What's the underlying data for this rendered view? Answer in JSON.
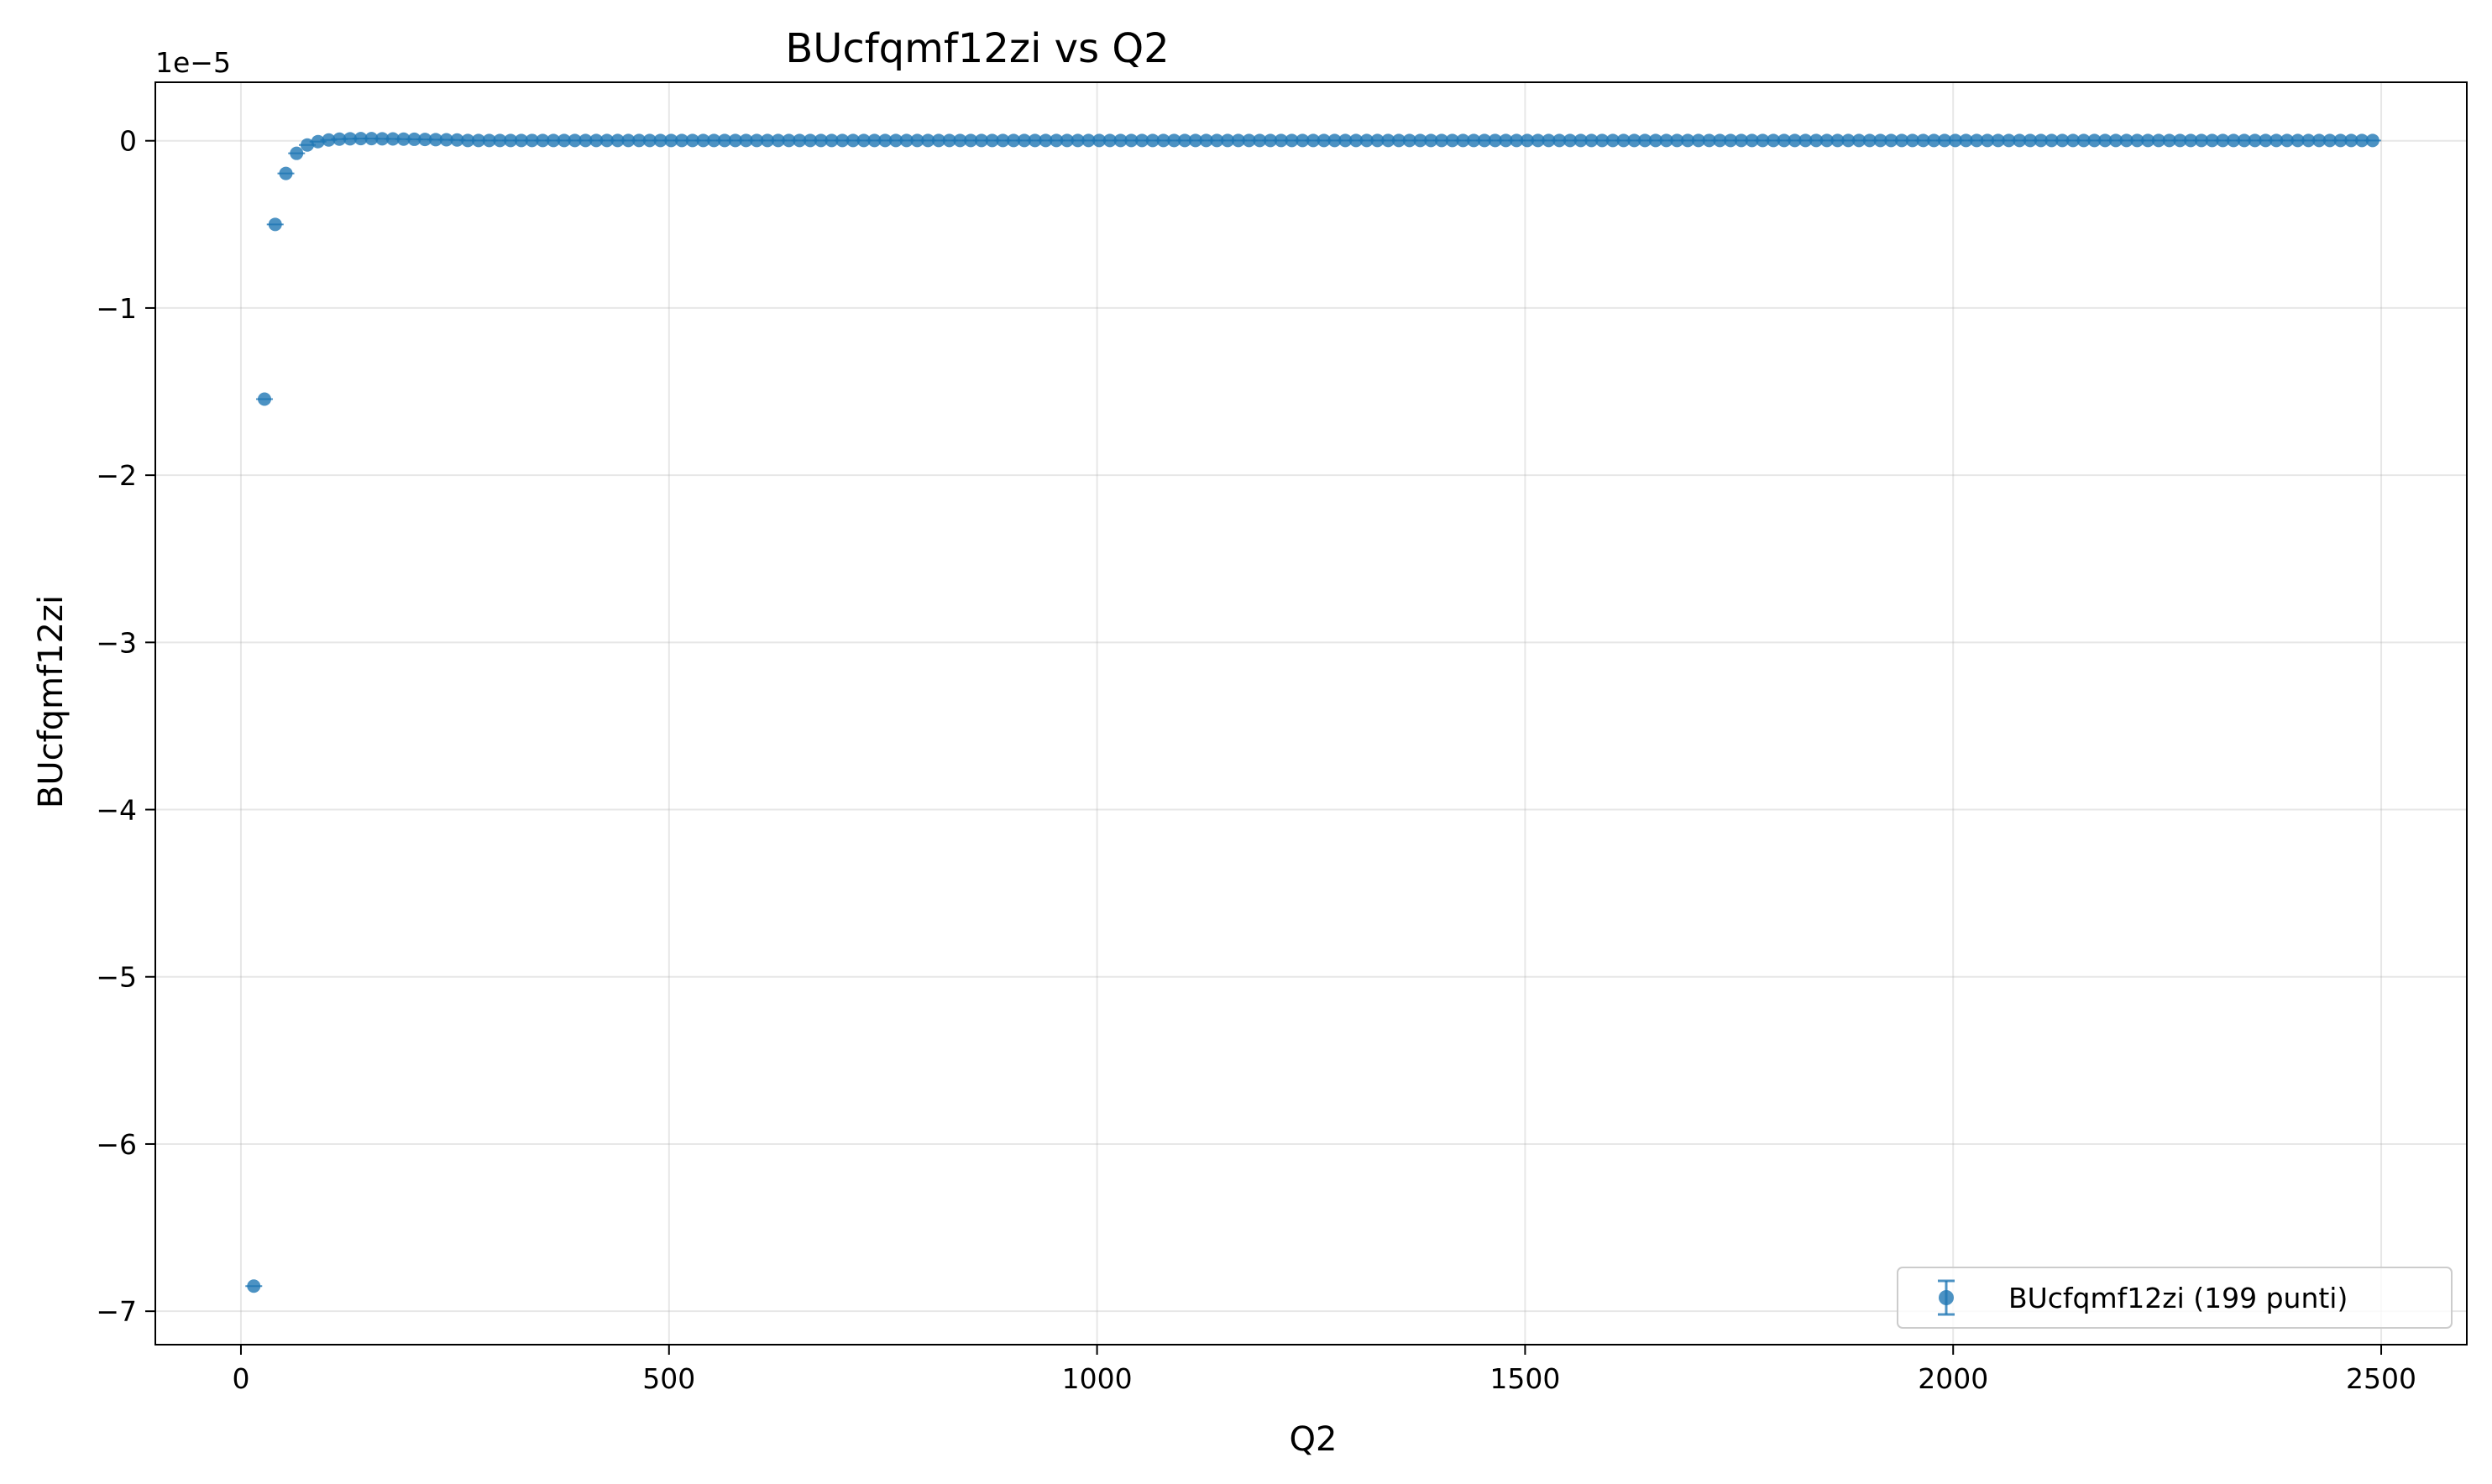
{
  "chart_data": {
    "type": "scatter",
    "title": "BUcfqmf12zi vs Q2",
    "xlabel": "Q2",
    "ylabel": "BUcfqmf12zi",
    "y_scale_note": "1e−5",
    "xlim": [
      -100,
      2600
    ],
    "ylim": [
      -7.2,
      0.35
    ],
    "x_ticks": [
      0,
      500,
      1000,
      1500,
      2000,
      2500
    ],
    "x_tick_labels": [
      "0",
      "500",
      "1000",
      "1500",
      "2000",
      "2500"
    ],
    "y_ticks": [
      0,
      -1,
      -2,
      -3,
      -4,
      -5,
      -6,
      -7
    ],
    "y_tick_labels": [
      "0",
      "−1",
      "−2",
      "−3",
      "−4",
      "−5",
      "−6",
      "−7"
    ],
    "grid": true,
    "legend_position": "bottom-right",
    "legend_label": "BUcfqmf12zi (199 punti)",
    "series_color": "#1f77b4",
    "series": [
      {
        "name": "BUcfqmf12zi (199 punti)",
        "x_start": 15,
        "x_step": 12.5,
        "count": 199,
        "y_leading": [
          -6.85,
          -1.545,
          -0.5,
          -0.195,
          -0.075,
          -0.025,
          -0.005,
          0.005,
          0.01,
          0.012,
          0.013,
          0.013,
          0.012,
          0.011,
          0.01,
          0.009,
          0.008,
          0.007,
          0.006,
          0.005
        ],
        "y_tail": 0.002
      }
    ]
  }
}
